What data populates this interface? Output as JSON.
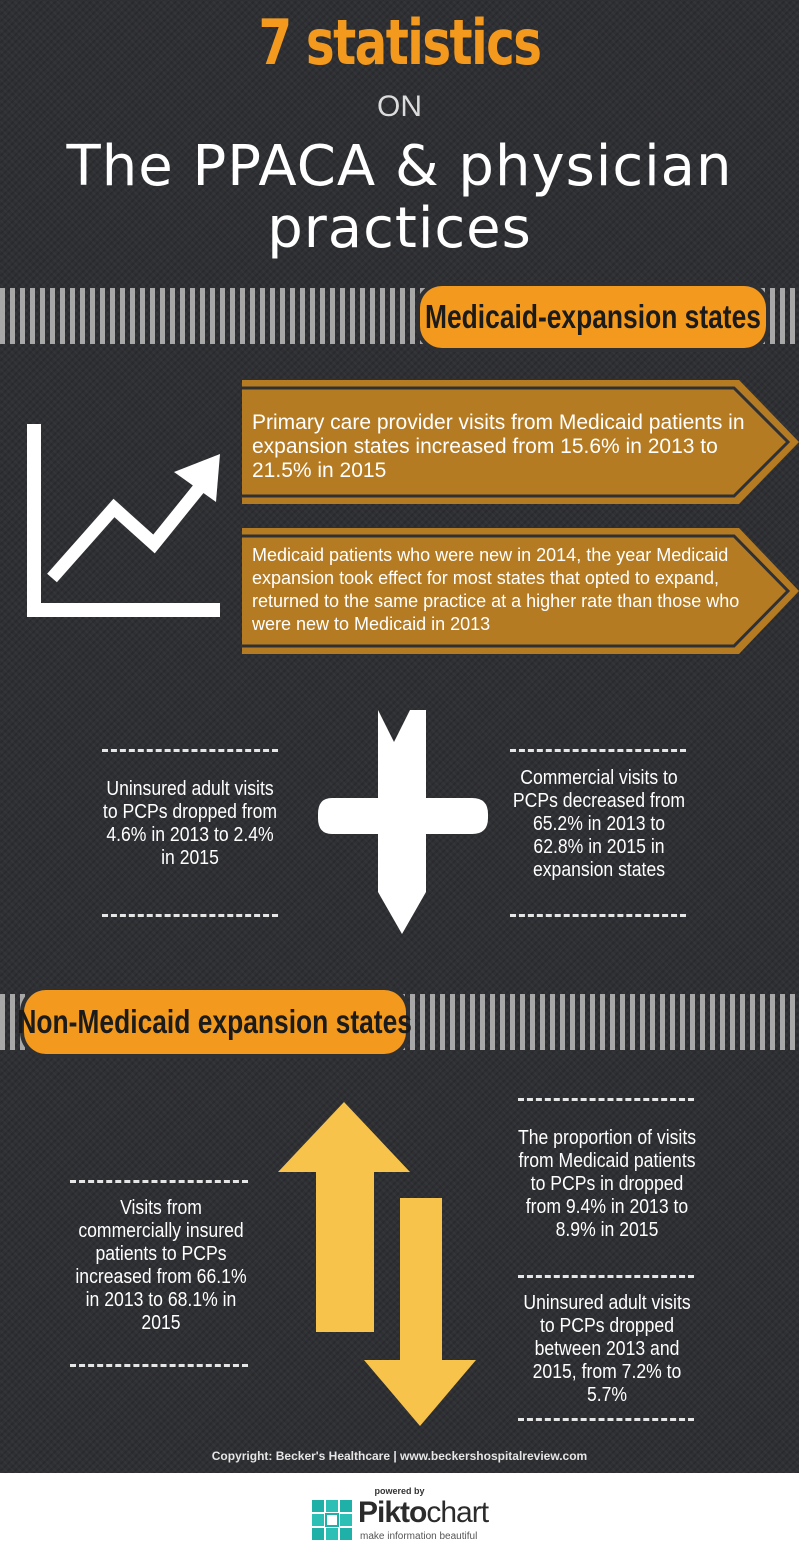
{
  "header": {
    "title_top": "7 statistics",
    "title_on": "ON",
    "title_main_line1": "The PPACA & physician",
    "title_main_line2": "practices"
  },
  "section_expansion": {
    "label": "Medicaid-expansion states",
    "banner_1": "Primary care provider visits from Medicaid patients in expansion states increased from 15.6% in 2013 to 21.5% in 2015",
    "banner_2": "Medicaid patients who were new in 2014, the year Medicaid expansion took effect for most states that opted to expand, returned to the same practice at a higher rate than those who were new to Medicaid in 2013",
    "stat_left": "Uninsured adult visits to PCPs dropped from 4.6% in 2013 to 2.4% in 2015",
    "stat_right": "Commercial visits to PCPs decreased from 65.2% in 2013 to 62.8% in 2015 in expansion states"
  },
  "section_non_expansion": {
    "label": "Non-Medicaid expansion states",
    "stat_left": "Visits from commercially insured patients to PCPs increased from 66.1% in 2013 to 68.1% in 2015",
    "stat_right_1": "The proportion of visits from Medicaid patients to PCPs in dropped from 9.4% in 2013 to 8.9% in 2015",
    "stat_right_2": "Uninsured adult visits to PCPs dropped between 2013 and 2015, from 7.2% to 5.7%"
  },
  "footer": {
    "copyright": "Copyright: Becker's Healthcare | www.beckershospitalreview.com",
    "powered_by": "powered by",
    "brand_part1": "Pikto",
    "brand_part2": "chart",
    "brand_tagline": "make information beautiful"
  },
  "colors": {
    "background": "#2f3034",
    "accent_orange": "#f39a1e",
    "banner_brown": "#b57b22",
    "arrow_yellow": "#f7c34a"
  },
  "icons": [
    "growth-chart-icon",
    "down-arrow-icon",
    "up-arrow-icon",
    "down-arrow-icon",
    "piktochart-logo-icon"
  ]
}
